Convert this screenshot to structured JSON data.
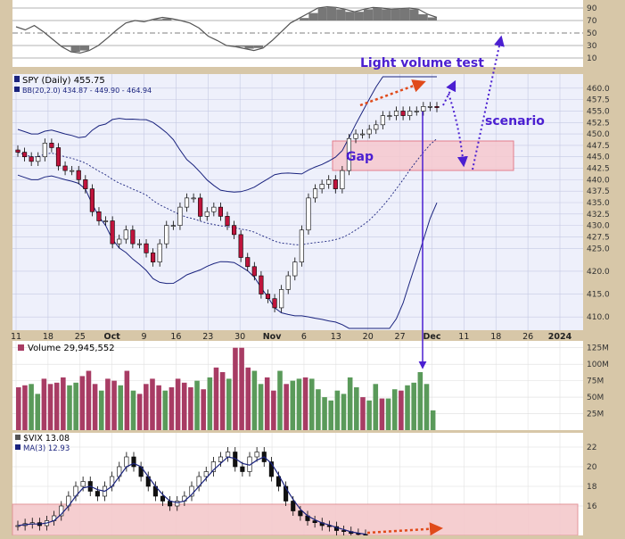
{
  "chart_data": [
    {
      "type": "line",
      "panel": "rsi",
      "y_ticks": [
        10,
        30,
        50,
        70,
        90
      ],
      "ylim": [
        0,
        100
      ],
      "series": [
        {
          "values": [
            60,
            55,
            62,
            52,
            40,
            28,
            20,
            18,
            22,
            30,
            42,
            55,
            66,
            70,
            68,
            72,
            75,
            73,
            70,
            66,
            58,
            45,
            38,
            30,
            28,
            25,
            22,
            26,
            38,
            52,
            66,
            74,
            82,
            90,
            92,
            91,
            88,
            84,
            88,
            91,
            90,
            88,
            89,
            90,
            88,
            80,
            75
          ]
        }
      ]
    },
    {
      "type": "candlestick",
      "panel": "price",
      "legend": [
        {
          "name": "SPY (Daily) 455.75",
          "color": "#000000"
        },
        {
          "name": "BB(20,2.0) 434.87 - 449.90 - 464.94",
          "color": "#1a237e"
        }
      ],
      "y_ticks": [
        410.0,
        415.0,
        420.0,
        425.0,
        427.5,
        430.0,
        432.5,
        435.0,
        437.5,
        440.0,
        442.5,
        445.0,
        447.5,
        450.0,
        452.5,
        455.0,
        457.5,
        460.0
      ],
      "ylim": [
        407.5,
        462.5
      ],
      "x_ticks": [
        "11",
        "18",
        "25",
        "Oct",
        "9",
        "16",
        "23",
        "30",
        "Nov",
        "6",
        "13",
        "20",
        "27",
        "Dec",
        "11",
        "18",
        "26",
        "2024"
      ],
      "close": [
        446,
        445,
        444,
        445,
        448,
        447,
        443,
        442,
        442,
        440,
        438,
        433,
        431,
        431,
        426,
        427,
        429,
        426,
        426,
        424,
        422,
        426,
        430,
        430,
        434,
        436,
        436,
        432,
        433,
        434,
        432,
        430,
        428,
        423,
        421,
        419,
        415,
        414,
        412,
        416,
        419,
        422,
        429,
        436,
        438,
        439,
        440,
        438,
        442,
        449,
        450,
        450,
        451,
        452,
        454,
        454,
        455,
        454,
        455,
        455,
        456,
        456,
        455.75
      ],
      "annotations": [
        "Light volume test",
        "scenario",
        "Gap"
      ]
    },
    {
      "type": "bar",
      "panel": "volume",
      "title": "Volume 29,945,552",
      "y_ticks": [
        "25M",
        "50M",
        "75M",
        "100M",
        "125M"
      ],
      "ylim": [
        0,
        130
      ],
      "values": [
        65,
        68,
        70,
        55,
        78,
        70,
        72,
        80,
        68,
        72,
        82,
        90,
        70,
        60,
        78,
        75,
        68,
        90,
        60,
        55,
        70,
        78,
        68,
        60,
        65,
        78,
        72,
        65,
        75,
        62,
        80,
        95,
        88,
        78,
        125,
        125,
        95,
        90,
        70,
        80,
        60,
        90,
        70,
        75,
        78,
        80,
        78,
        62,
        50,
        45,
        60,
        55,
        80,
        65,
        50,
        45,
        70,
        48,
        48,
        62,
        60,
        68,
        72,
        88,
        70,
        30
      ]
    },
    {
      "type": "candlestick",
      "panel": "vix",
      "legend": [
        {
          "name": "$VIX 13.08",
          "color": "#000000"
        },
        {
          "name": "MA(3) 12.93",
          "color": "#1a237e"
        }
      ],
      "y_ticks": [
        16,
        18,
        20,
        22
      ],
      "ylim": [
        13,
        23
      ],
      "close": [
        14.0,
        14.2,
        14.3,
        14.0,
        14.5,
        15.0,
        16.0,
        17.0,
        18.0,
        18.5,
        17.5,
        17.0,
        18.0,
        19.0,
        20.0,
        21.0,
        20.0,
        19.0,
        18.0,
        17.0,
        16.5,
        16.0,
        16.5,
        17.0,
        18.0,
        19.0,
        19.5,
        20.5,
        21.0,
        21.5,
        20.0,
        19.5,
        21.0,
        21.5,
        20.5,
        19.0,
        18.0,
        16.5,
        15.5,
        15.0,
        14.5,
        14.3,
        14.0,
        13.9,
        13.5,
        13.4,
        13.2,
        13.1,
        13.08
      ]
    }
  ]
}
